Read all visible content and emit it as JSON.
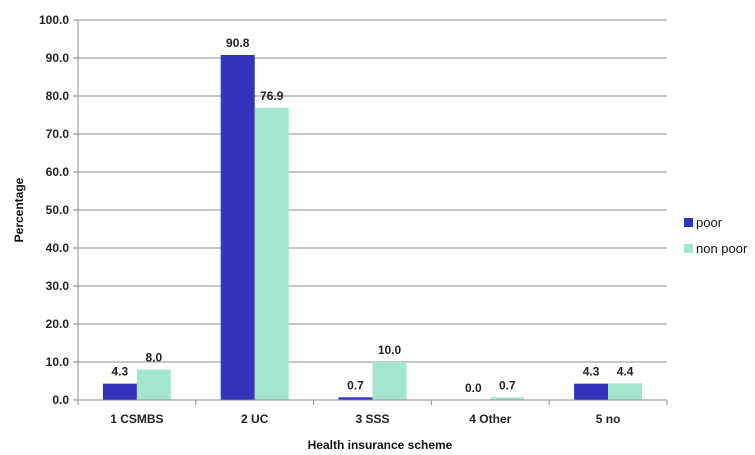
{
  "chart_data": {
    "type": "bar",
    "categories": [
      "1 CSMBS",
      "2 UC",
      "3 SSS",
      "4 Other",
      "5 no"
    ],
    "series": [
      {
        "name": "poor",
        "values": [
          4.3,
          90.8,
          0.7,
          0.0,
          4.3
        ],
        "labels": [
          "4.3",
          "90.8",
          "0.7",
          "0.0",
          "4.3"
        ],
        "color": "#3333bb"
      },
      {
        "name": "non poor",
        "values": [
          8.0,
          76.9,
          10.0,
          0.7,
          4.4
        ],
        "labels": [
          "8.0",
          "76.9",
          "10.0",
          "0.7",
          "4.4"
        ],
        "color": "#a3e6cf"
      }
    ],
    "xlabel": "Health insurance scheme",
    "ylabel": "Percentage",
    "ylim": [
      0,
      100
    ],
    "yticks": [
      0,
      10,
      20,
      30,
      40,
      50,
      60,
      70,
      80,
      90,
      100
    ],
    "ytick_labels": [
      "0.0",
      "10.0",
      "20.0",
      "30.0",
      "40.0",
      "50.0",
      "60.0",
      "70.0",
      "80.0",
      "90.0",
      "100.0"
    ],
    "grid": "horizontal",
    "legend": "right"
  }
}
